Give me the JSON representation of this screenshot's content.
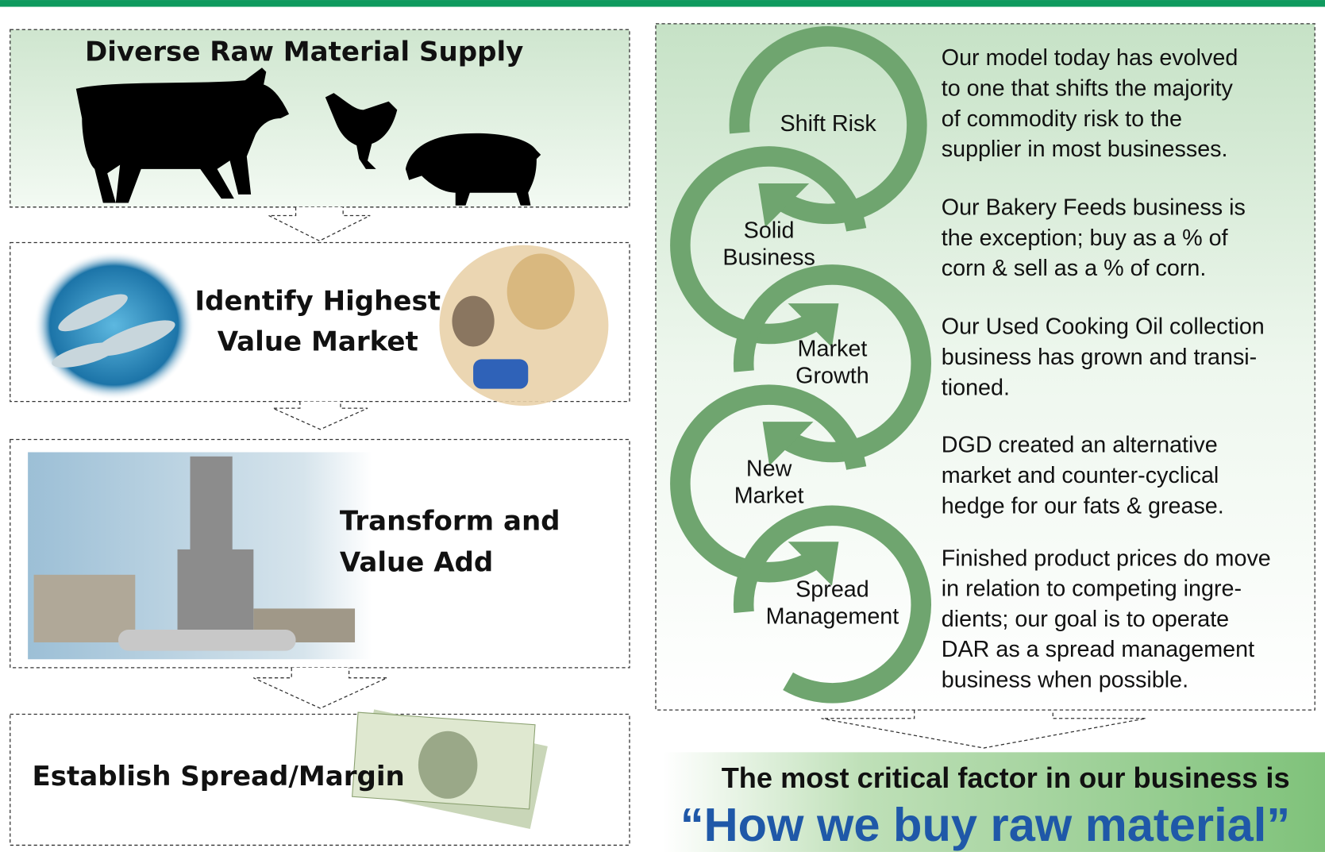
{
  "left_steps": [
    {
      "title": [
        "Diverse Raw Material Supply"
      ]
    },
    {
      "title": [
        "Identify Highest",
        "Value Market"
      ]
    },
    {
      "title": [
        "Transform and",
        "Value Add"
      ]
    },
    {
      "title": [
        "Establish Spread/Margin"
      ]
    }
  ],
  "cycle": [
    {
      "label": [
        "Shift Risk"
      ],
      "description": [
        "Our model today has evolved",
        "to one that shifts the majority",
        "of commodity risk to the",
        "supplier in most businesses."
      ]
    },
    {
      "label": [
        "Solid",
        "Business"
      ],
      "description": [
        "Our Bakery Feeds business is",
        "the exception; buy as a % of",
        "corn & sell as a % of corn."
      ]
    },
    {
      "label": [
        "Market",
        "Growth"
      ],
      "description": [
        "Our Used Cooking Oil collection",
        "business has grown and transi-",
        "tioned."
      ]
    },
    {
      "label": [
        "New",
        "Market"
      ],
      "description": [
        "DGD created an alternative",
        "market and counter-cyclical",
        "hedge for our fats & grease."
      ]
    },
    {
      "label": [
        "Spread",
        "Management"
      ],
      "description": [
        "Finished product prices do move",
        "in relation to competing ingre-",
        "dients; our goal is to operate",
        "DAR as a spread management",
        "business when possible."
      ]
    }
  ],
  "callout": {
    "lead": "The most critical factor in our business is",
    "quote": "“How we buy raw material”"
  }
}
